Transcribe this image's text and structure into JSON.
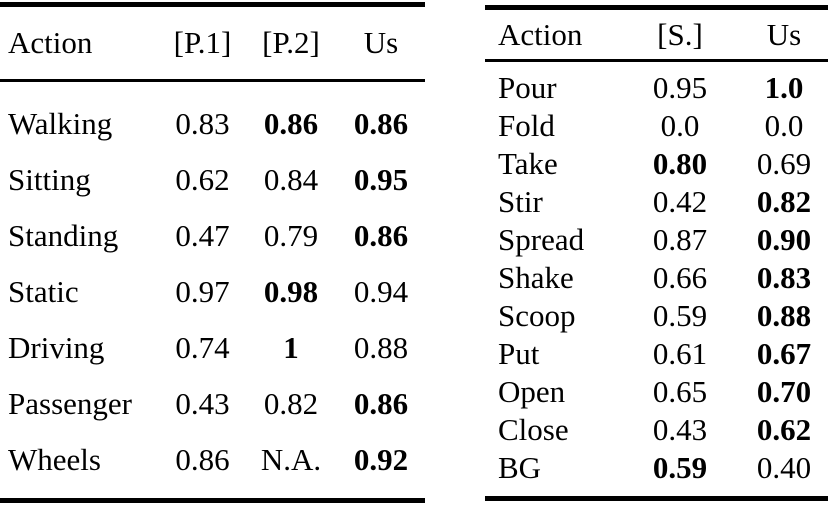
{
  "page": {
    "background_color": "#ffffff",
    "text_color": "#000000",
    "rule_color": "#000000"
  },
  "tables": {
    "left": {
      "columns": [
        "Action",
        "[P.1]",
        "[P.2]",
        "Us"
      ],
      "header_bold": [
        true,
        false,
        false,
        true
      ],
      "rows": [
        {
          "action": "Walking",
          "cells": [
            {
              "v": "0.83",
              "bold": false
            },
            {
              "v": "0.86",
              "bold": true
            },
            {
              "v": "0.86",
              "bold": true
            }
          ]
        },
        {
          "action": "Sitting",
          "cells": [
            {
              "v": "0.62",
              "bold": false
            },
            {
              "v": "0.84",
              "bold": false
            },
            {
              "v": "0.95",
              "bold": true
            }
          ]
        },
        {
          "action": "Standing",
          "cells": [
            {
              "v": "0.47",
              "bold": false
            },
            {
              "v": "0.79",
              "bold": false
            },
            {
              "v": "0.86",
              "bold": true
            }
          ]
        },
        {
          "action": "Static",
          "cells": [
            {
              "v": "0.97",
              "bold": false
            },
            {
              "v": "0.98",
              "bold": true
            },
            {
              "v": "0.94",
              "bold": false
            }
          ]
        },
        {
          "action": "Driving",
          "cells": [
            {
              "v": "0.74",
              "bold": false
            },
            {
              "v": "1",
              "bold": true
            },
            {
              "v": "0.88",
              "bold": false
            }
          ]
        },
        {
          "action": "Passenger",
          "cells": [
            {
              "v": "0.43",
              "bold": false
            },
            {
              "v": "0.82",
              "bold": false
            },
            {
              "v": "0.86",
              "bold": true
            }
          ]
        },
        {
          "action": "Wheels",
          "cells": [
            {
              "v": "0.86",
              "bold": false
            },
            {
              "v": "N.A.",
              "bold": false
            },
            {
              "v": "0.92",
              "bold": true
            }
          ]
        }
      ]
    },
    "right": {
      "columns": [
        "Action",
        "[S.]",
        "Us"
      ],
      "header_bold": [
        true,
        false,
        true
      ],
      "rows": [
        {
          "action": "Pour",
          "cells": [
            {
              "v": "0.95",
              "bold": false
            },
            {
              "v": "1.0",
              "bold": true
            }
          ]
        },
        {
          "action": "Fold",
          "cells": [
            {
              "v": "0.0",
              "bold": false
            },
            {
              "v": "0.0",
              "bold": false
            }
          ]
        },
        {
          "action": "Take",
          "cells": [
            {
              "v": "0.80",
              "bold": true
            },
            {
              "v": "0.69",
              "bold": false
            }
          ]
        },
        {
          "action": "Stir",
          "cells": [
            {
              "v": "0.42",
              "bold": false
            },
            {
              "v": "0.82",
              "bold": true
            }
          ]
        },
        {
          "action": "Spread",
          "cells": [
            {
              "v": "0.87",
              "bold": false
            },
            {
              "v": "0.90",
              "bold": true
            }
          ]
        },
        {
          "action": "Shake",
          "cells": [
            {
              "v": "0.66",
              "bold": false
            },
            {
              "v": "0.83",
              "bold": true
            }
          ]
        },
        {
          "action": "Scoop",
          "cells": [
            {
              "v": "0.59",
              "bold": false
            },
            {
              "v": "0.88",
              "bold": true
            }
          ]
        },
        {
          "action": "Put",
          "cells": [
            {
              "v": "0.61",
              "bold": false
            },
            {
              "v": "0.67",
              "bold": true
            }
          ]
        },
        {
          "action": "Open",
          "cells": [
            {
              "v": "0.65",
              "bold": false
            },
            {
              "v": "0.70",
              "bold": true
            }
          ]
        },
        {
          "action": "Close",
          "cells": [
            {
              "v": "0.43",
              "bold": false
            },
            {
              "v": "0.62",
              "bold": true
            }
          ]
        },
        {
          "action": "BG",
          "cells": [
            {
              "v": "0.59",
              "bold": true
            },
            {
              "v": "0.40",
              "bold": false
            }
          ]
        }
      ]
    }
  }
}
